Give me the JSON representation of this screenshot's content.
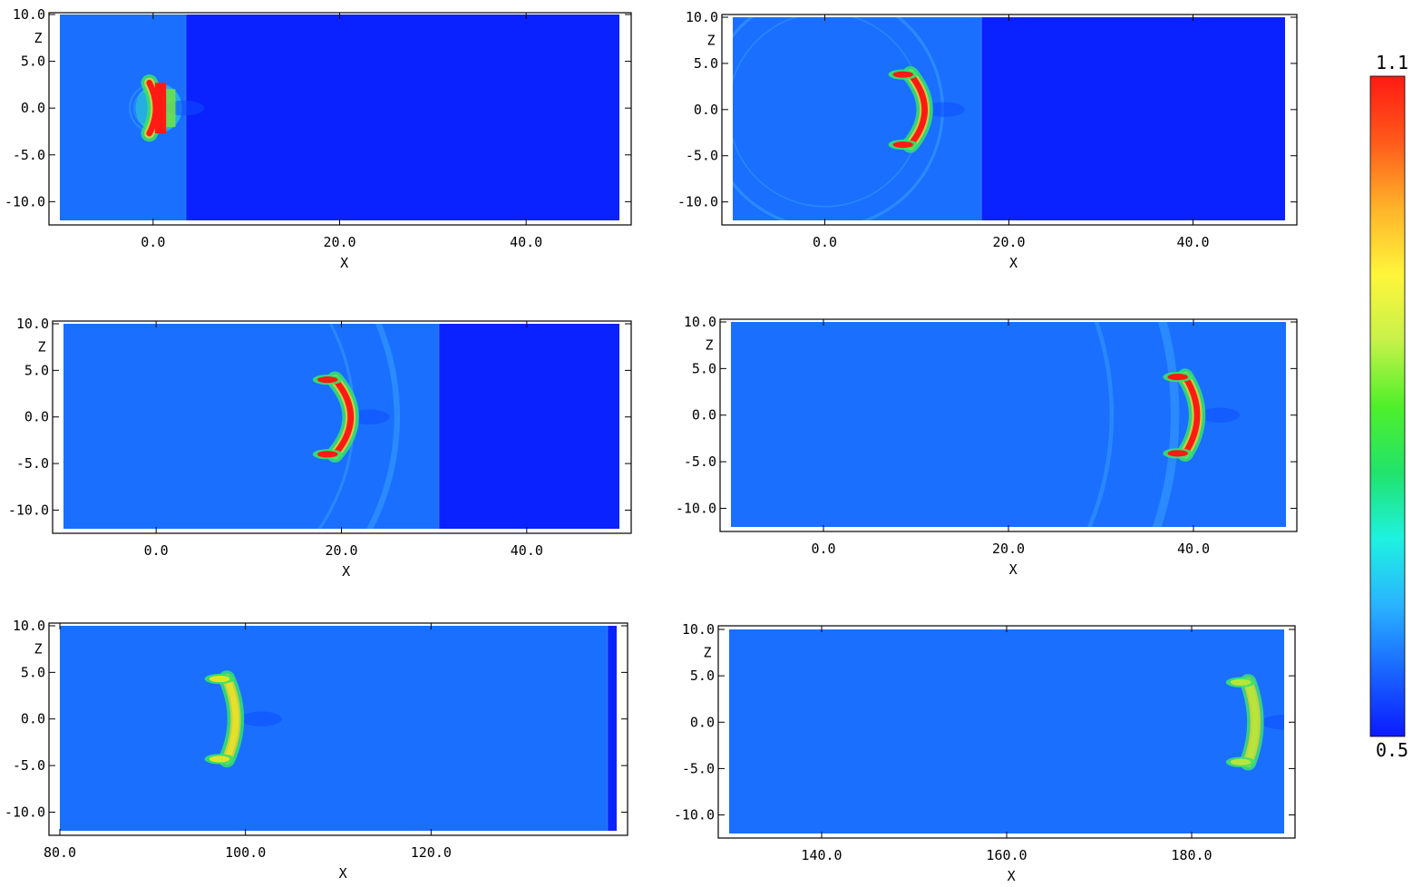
{
  "colorbar": {
    "max_label": "1.1",
    "min_label": "0.5",
    "max": 1.1,
    "min": 0.5,
    "colormap": [
      "#0b1aff",
      "#1a66ff",
      "#2ab4ff",
      "#1ef2e0",
      "#21e36b",
      "#4ff02a",
      "#c7f24a",
      "#fff53a",
      "#ffb32a",
      "#ff5a1a",
      "#ff1a14"
    ]
  },
  "chart_data": [
    {
      "type": "heatmap",
      "panel": "top-left",
      "xlabel": "X",
      "ylabel": "Z",
      "xlim": [
        -10,
        50
      ],
      "ylim": [
        -12,
        10
      ],
      "xticks": [
        0,
        20,
        40
      ],
      "xtick_labels": [
        "0.0",
        "20.0",
        "40.0"
      ],
      "yticks": [
        10,
        5,
        0,
        -5,
        -10
      ],
      "ytick_labels": [
        "10.0",
        "5.0",
        "0.0",
        "-5.0",
        "-10.0"
      ],
      "shock_front_x": 3.5,
      "ring_max_radius": 2.5,
      "bubble": {
        "x": 0.8,
        "half_height": 2.7,
        "curvature": 0.2,
        "state": "compact"
      }
    },
    {
      "type": "heatmap",
      "panel": "top-right",
      "xlabel": "X",
      "ylabel": "Z",
      "xlim": [
        -10,
        50
      ],
      "ylim": [
        -12,
        10
      ],
      "xticks": [
        0,
        20,
        40
      ],
      "xtick_labels": [
        "0.0",
        "20.0",
        "40.0"
      ],
      "yticks": [
        10,
        5,
        0,
        -5,
        -10
      ],
      "ytick_labels": [
        "10.0",
        "5.0",
        "0.0",
        "-5.0",
        "-10.0"
      ],
      "shock_front_x": 17,
      "ring_max_radius": 12.8,
      "bubble": {
        "x": 10.5,
        "half_height": 3.8,
        "curvature": 1.9,
        "state": "early"
      }
    },
    {
      "type": "heatmap",
      "panel": "middle-left",
      "xlabel": "X",
      "ylabel": "Z",
      "xlim": [
        -10,
        50
      ],
      "ylim": [
        -12,
        10
      ],
      "xticks": [
        0,
        20,
        40
      ],
      "xtick_labels": [
        "0.0",
        "20.0",
        "40.0"
      ],
      "yticks": [
        10,
        5,
        0,
        -5,
        -10
      ],
      "ytick_labels": [
        "10.0",
        "5.0",
        "0.0",
        "-5.0",
        "-10.0"
      ],
      "shock_front_x": 30.5,
      "ring_max_radius": 26,
      "bubble": {
        "x": 20.5,
        "half_height": 4.0,
        "curvature": 2.2,
        "state": "mid"
      }
    },
    {
      "type": "heatmap",
      "panel": "middle-right",
      "xlabel": "X",
      "ylabel": "Z",
      "xlim": [
        -10,
        50
      ],
      "ylim": [
        -12,
        10
      ],
      "xticks": [
        0,
        20,
        40
      ],
      "xtick_labels": [
        "0.0",
        "20.0",
        "40.0"
      ],
      "yticks": [
        10,
        5,
        0,
        -5,
        -10
      ],
      "ytick_labels": [
        "10.0",
        "5.0",
        "0.0",
        "-5.0",
        "-10.0"
      ],
      "shock_front_x": null,
      "ring_max_radius": 38,
      "bubble": {
        "x": 40.3,
        "half_height": 4.1,
        "curvature": 1.4,
        "state": "mid"
      }
    },
    {
      "type": "heatmap",
      "panel": "bottom-left",
      "xlabel": "X",
      "ylabel": "Z",
      "xlim": [
        80,
        140
      ],
      "ylim": [
        -12,
        10
      ],
      "xticks": [
        80,
        100,
        120
      ],
      "xtick_labels": [
        "80.0",
        "100.0",
        "120.0"
      ],
      "yticks": [
        10,
        5,
        0,
        -5,
        -10
      ],
      "ytick_labels": [
        "10.0",
        "5.0",
        "0.0",
        "-5.0",
        "-10.0"
      ],
      "shock_front_x": 139,
      "ring_max_radius": null,
      "bubble": {
        "x": 99.2,
        "half_height": 4.3,
        "curvature": 0.7,
        "state": "late"
      }
    },
    {
      "type": "heatmap",
      "panel": "bottom-right",
      "xlabel": "X",
      "ylabel": "Z",
      "xlim": [
        130,
        190
      ],
      "ylim": [
        -12,
        10
      ],
      "xticks": [
        140,
        160,
        180
      ],
      "xtick_labels": [
        "140.0",
        "160.0",
        "180.0"
      ],
      "yticks": [
        10,
        5,
        0,
        -5,
        -10
      ],
      "ytick_labels": [
        "10.0",
        "5.0",
        "0.0",
        "-5.0",
        "-10.0"
      ],
      "shock_front_x": null,
      "ring_max_radius": null,
      "bubble": {
        "x": 187.3,
        "half_height": 4.3,
        "curvature": 0.4,
        "state": "diffuse"
      }
    }
  ]
}
